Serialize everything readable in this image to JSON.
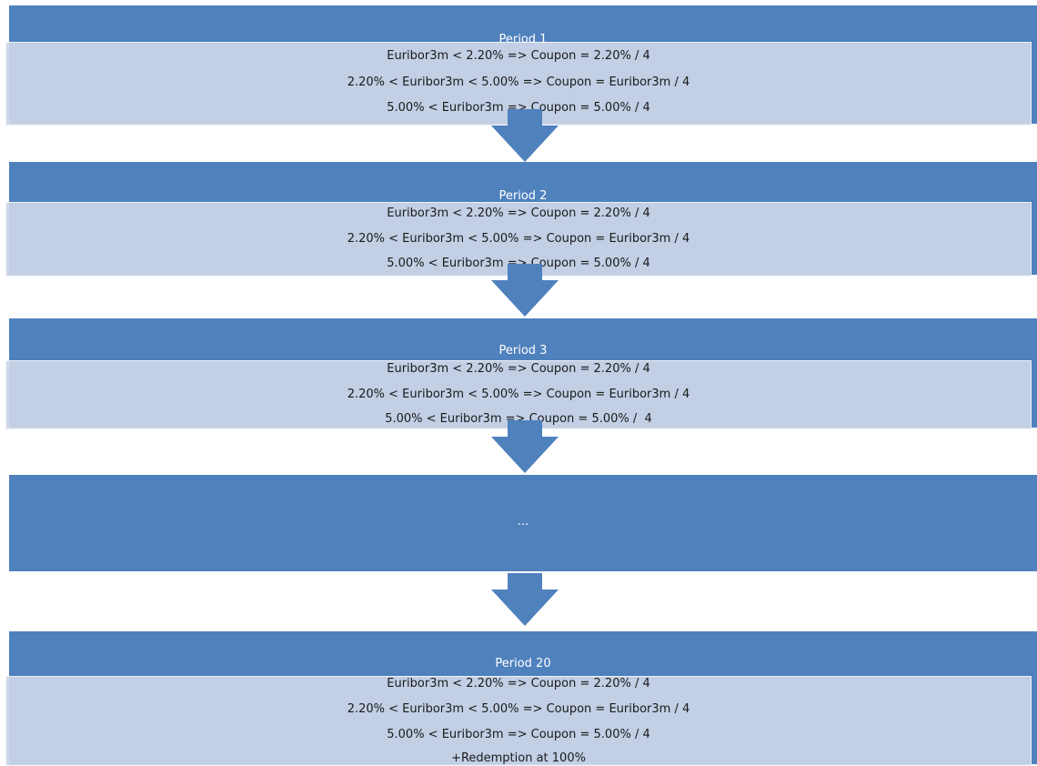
{
  "colors": {
    "band": "#4f81bd",
    "detail_box": "#ccd6e8",
    "arrow": "#4f81bd",
    "text": "#1a1a1a"
  },
  "periods": [
    {
      "label": "Period 1",
      "lines": [
        "Euribor3m < 2.20% => Coupon = 2.20% / 4",
        "2.20% < Euribor3m < 5.00% => Coupon = Euribor3m / 4",
        "5.00% < Euribor3m => Coupon = 5.00% / 4"
      ]
    },
    {
      "label": "Period 2",
      "lines": [
        "Euribor3m < 2.20% => Coupon = 2.20% / 4",
        "2.20% < Euribor3m < 5.00% => Coupon = Euribor3m / 4",
        "5.00% < Euribor3m => Coupon = 5.00% / 4"
      ]
    },
    {
      "label": "Period 3",
      "lines": [
        "Euribor3m < 2.20% => Coupon = 2.20% / 4",
        "2.20% < Euribor3m < 5.00% => Coupon = Euribor3m / 4",
        "5.00% < Euribor3m => Coupon = 5.00% /  4"
      ]
    },
    {
      "label": "Period 20",
      "lines": [
        "Euribor3m < 2.20% => Coupon = 2.20% / 4",
        "2.20% < Euribor3m < 5.00% => Coupon = Euribor3m / 4",
        "5.00% < Euribor3m => Coupon = 5.00% / 4",
        "+Redemption at 100%"
      ]
    }
  ],
  "ellipsis": "..."
}
